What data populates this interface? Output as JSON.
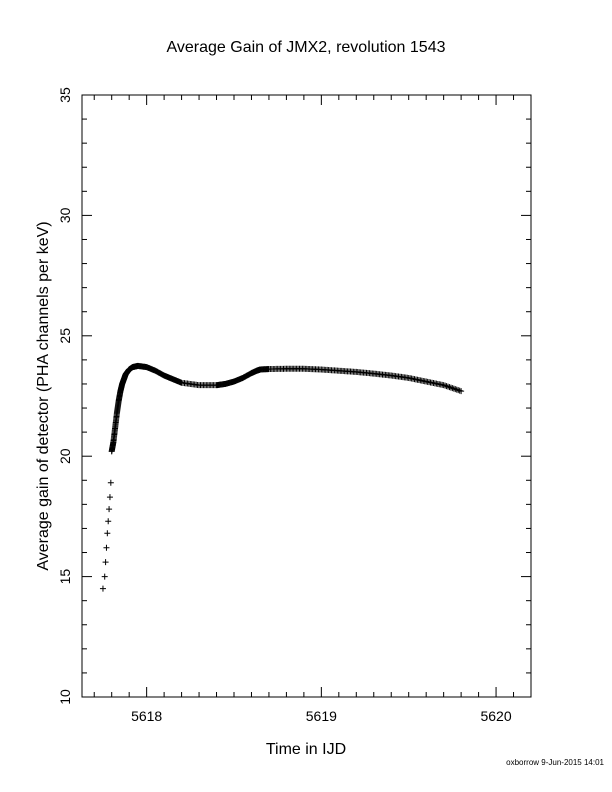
{
  "chart_data": {
    "type": "scatter",
    "title": "Average Gain of JMX2, revolution 1543",
    "xlabel": "Time in IJD",
    "ylabel": "Average gain of detector (PHA channels per keV)",
    "xlim": [
      5617.63,
      5620.2
    ],
    "ylim": [
      10,
      35
    ],
    "x_ticks": [
      5618,
      5619,
      5620
    ],
    "x_tick_labels": [
      "5618",
      "5619",
      "5620"
    ],
    "y_ticks": [
      10,
      15,
      20,
      25,
      30,
      35
    ],
    "y_tick_labels": [
      "10",
      "15",
      "20",
      "25",
      "30",
      "35"
    ],
    "marker": "+",
    "grid": false,
    "points": {
      "x": [
        5617.75,
        5617.76,
        5617.765,
        5617.77,
        5617.775,
        5617.78,
        5617.785,
        5617.79,
        5617.795,
        5617.8,
        5617.81,
        5617.82,
        5617.83,
        5617.84,
        5617.85,
        5617.86,
        5617.87,
        5617.88,
        5617.89,
        5617.9,
        5617.92,
        5617.95,
        5618.0,
        5618.05,
        5618.1,
        5618.15,
        5618.2,
        5618.3,
        5618.4,
        5618.45,
        5618.5,
        5618.55,
        5618.6,
        5618.63,
        5618.65,
        5618.7,
        5618.8,
        5618.9,
        5619.0,
        5619.1,
        5619.2,
        5619.3,
        5619.4,
        5619.5,
        5619.6,
        5619.7,
        5619.8
      ],
      "y": [
        14.5,
        15.0,
        15.6,
        16.2,
        16.8,
        17.3,
        17.8,
        18.3,
        18.9,
        20.2,
        20.6,
        21.2,
        21.8,
        22.3,
        22.7,
        23.0,
        23.2,
        23.4,
        23.5,
        23.6,
        23.7,
        23.75,
        23.7,
        23.55,
        23.35,
        23.2,
        23.05,
        22.95,
        22.95,
        23.0,
        23.1,
        23.25,
        23.45,
        23.55,
        23.6,
        23.62,
        23.63,
        23.63,
        23.6,
        23.55,
        23.5,
        23.43,
        23.35,
        23.25,
        23.1,
        22.95,
        22.7
      ]
    }
  },
  "footer": {
    "credit": "oxborrow  9-Jun-2015 14:01"
  }
}
